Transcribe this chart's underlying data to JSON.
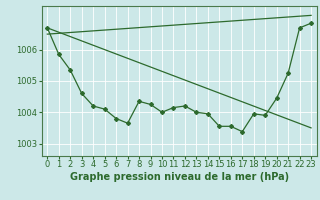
{
  "background_color": "#cce8e8",
  "line_color": "#2d6a2d",
  "xlabel": "Graphe pression niveau de la mer (hPa)",
  "xlabel_fontsize": 7.0,
  "tick_fontsize": 6.0,
  "ylim": [
    1002.6,
    1007.4
  ],
  "xlim": [
    -0.5,
    23.5
  ],
  "yticks": [
    1003,
    1004,
    1005,
    1006
  ],
  "xticks": [
    0,
    1,
    2,
    3,
    4,
    5,
    6,
    7,
    8,
    9,
    10,
    11,
    12,
    13,
    14,
    15,
    16,
    17,
    18,
    19,
    20,
    21,
    22,
    23
  ],
  "series1_x": [
    0,
    1,
    2,
    3,
    4,
    5,
    6,
    7,
    8,
    9,
    10,
    11,
    12,
    13,
    14,
    15,
    16,
    17,
    18,
    19,
    20,
    21,
    22,
    23
  ],
  "series1_y": [
    1006.7,
    1005.85,
    1005.35,
    1004.6,
    1004.2,
    1004.1,
    1003.8,
    1003.65,
    1004.35,
    1004.25,
    1004.0,
    1004.15,
    1004.2,
    1004.0,
    1003.95,
    1003.55,
    1003.55,
    1003.38,
    1003.95,
    1003.9,
    1004.45,
    1005.25,
    1006.7,
    1006.85
  ],
  "series2_x": [
    0,
    23
  ],
  "series2_y": [
    1006.7,
    1003.5
  ],
  "series3_x": [
    0,
    23
  ],
  "series3_y": [
    1006.5,
    1007.1
  ]
}
